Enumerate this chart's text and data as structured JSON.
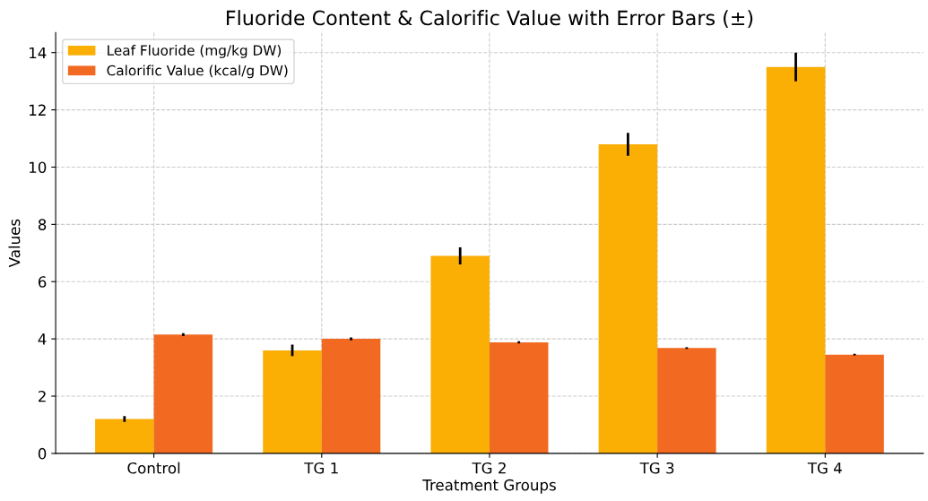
{
  "chart_data": {
    "type": "bar",
    "title": "Fluoride Content & Calorific Value with Error Bars (±)",
    "xlabel": "Treatment Groups",
    "ylabel": "Values",
    "categories": [
      "Control",
      "TG 1",
      "TG 2",
      "TG 3",
      "TG 4"
    ],
    "series": [
      {
        "name": "Leaf Fluoride (mg/kg DW)",
        "color": "#fbae04",
        "values": [
          1.2,
          3.6,
          6.9,
          10.8,
          13.5
        ],
        "errors": [
          0.1,
          0.2,
          0.3,
          0.4,
          0.5
        ]
      },
      {
        "name": "Calorific Value (kcal/g DW)",
        "color": "#f26a22",
        "values": [
          4.15,
          4.0,
          3.88,
          3.68,
          3.45
        ],
        "errors": [
          0.05,
          0.05,
          0.04,
          0.03,
          0.03
        ]
      }
    ],
    "ylim": [
      0,
      14.7
    ],
    "yticks": [
      0,
      2,
      4,
      6,
      8,
      10,
      12,
      14
    ],
    "grid": true,
    "legend": "top left"
  }
}
